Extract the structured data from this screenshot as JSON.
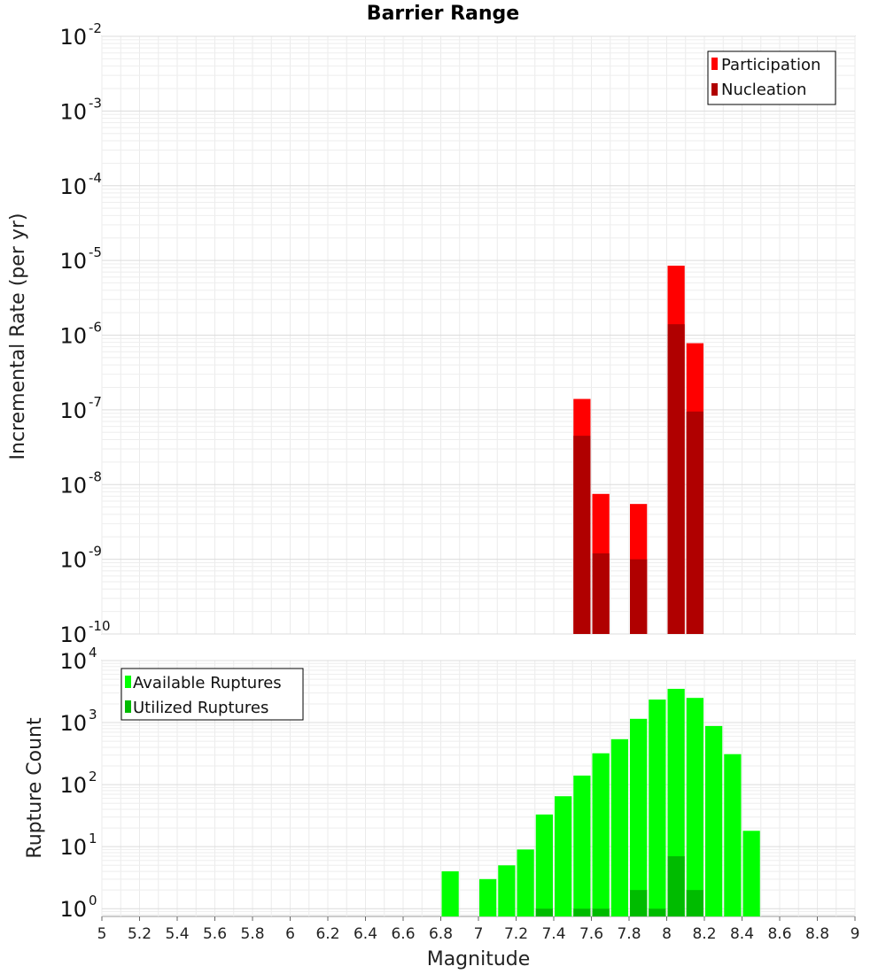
{
  "chart_data": [
    {
      "type": "bar",
      "title": "Barrier Range",
      "xlabel": "",
      "ylabel": "Incremental Rate (per yr)",
      "yscale": "log",
      "ylim": [
        1e-10,
        0.01
      ],
      "xlim": [
        5,
        9
      ],
      "bin_width": 0.1,
      "legend_position": "top-right",
      "ytick_exponents": [
        "-10",
        "-9",
        "-8",
        "-7",
        "-6",
        "-5",
        "-4",
        "-3",
        "-2"
      ],
      "ytick_base": "10",
      "series": [
        {
          "name": "Participation",
          "color": "#ff0000",
          "x": [
            7.55,
            7.65,
            7.85,
            8.05,
            8.15
          ],
          "values": [
            1.4e-07,
            7.5e-09,
            5.5e-09,
            8.5e-06,
            7.8e-07
          ]
        },
        {
          "name": "Nucleation",
          "color": "#b00000",
          "x": [
            7.55,
            7.65,
            7.85,
            8.05,
            8.15
          ],
          "values": [
            4.5e-08,
            1.2e-09,
            1e-09,
            1.4e-06,
            9.5e-08
          ]
        }
      ]
    },
    {
      "type": "bar",
      "title": "",
      "xlabel": "Magnitude",
      "ylabel": "Rupture Count",
      "yscale": "log",
      "ylim": [
        0.75,
        10000
      ],
      "xlim": [
        5,
        9
      ],
      "bin_width": 0.1,
      "legend_position": "top-left",
      "ytick_exponents": [
        "0",
        "1",
        "2",
        "3",
        "4"
      ],
      "ytick_base": "10",
      "xticks": [
        "5",
        "5.2",
        "5.4",
        "5.6",
        "5.8",
        "6",
        "6.2",
        "6.4",
        "6.6",
        "6.8",
        "7",
        "7.2",
        "7.4",
        "7.6",
        "7.8",
        "8",
        "8.2",
        "8.4",
        "8.6",
        "8.8",
        "9"
      ],
      "series": [
        {
          "name": "Available Ruptures",
          "color": "#00ff00",
          "x": [
            6.85,
            7.05,
            7.15,
            7.25,
            7.35,
            7.45,
            7.55,
            7.65,
            7.75,
            7.85,
            7.95,
            8.05,
            8.15,
            8.25,
            8.35,
            8.45
          ],
          "values": [
            4,
            3,
            5,
            9,
            33,
            65,
            140,
            320,
            540,
            1150,
            2350,
            3500,
            2500,
            880,
            310,
            18
          ]
        },
        {
          "name": "Utilized Ruptures",
          "color": "#00bb00",
          "x": [
            7.35,
            7.55,
            7.65,
            7.85,
            7.95,
            8.05,
            8.15
          ],
          "values": [
            1,
            1,
            1,
            2,
            1,
            7,
            2
          ]
        }
      ]
    }
  ]
}
